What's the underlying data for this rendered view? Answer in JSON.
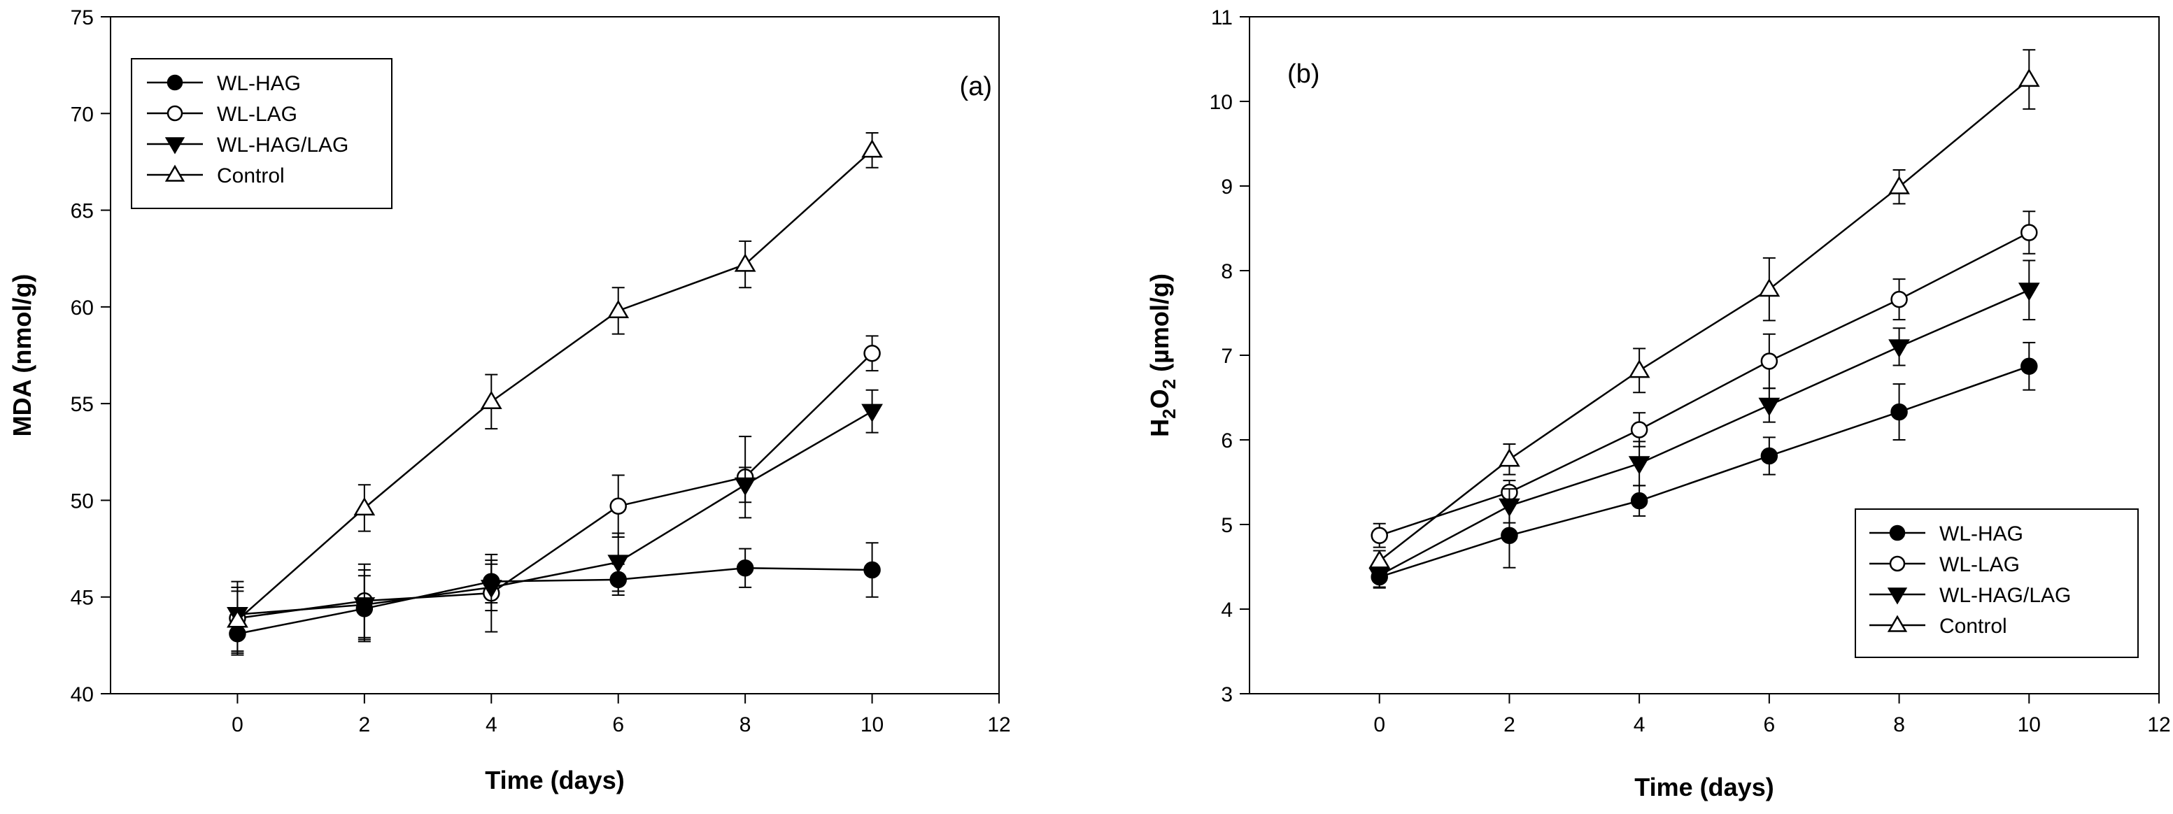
{
  "chart_data": [
    {
      "type": "line",
      "panel_label": "(a)",
      "xlabel": "Time (days)",
      "ylabel": "MDA (nmol/g)",
      "xlim": [
        -2,
        12
      ],
      "ylim": [
        40,
        75
      ],
      "xticks": [
        0,
        2,
        4,
        6,
        8,
        10,
        12
      ],
      "yticks": [
        40,
        45,
        50,
        55,
        60,
        65,
        70,
        75
      ],
      "legend_position": "top-left",
      "x": [
        0,
        2,
        4,
        6,
        8,
        10
      ],
      "series": [
        {
          "name": "WL-HAG",
          "marker": "circle-filled",
          "values": [
            43.1,
            44.4,
            45.8,
            45.9,
            46.5,
            46.4
          ],
          "errors": [
            0.9,
            1.7,
            1.1,
            0.8,
            1.0,
            1.4
          ]
        },
        {
          "name": "WL-LAG",
          "marker": "circle-open",
          "values": [
            43.9,
            44.8,
            45.2,
            49.7,
            51.2,
            57.6
          ],
          "errors": [
            1.9,
            1.9,
            2.0,
            1.6,
            2.1,
            0.9
          ]
        },
        {
          "name": "WL-HAG/LAG",
          "marker": "triangle-down-filled",
          "values": [
            44.1,
            44.6,
            45.5,
            46.8,
            50.8,
            54.6
          ],
          "errors": [
            1.2,
            1.8,
            1.2,
            1.5,
            0.9,
            1.1
          ]
        },
        {
          "name": "Control",
          "marker": "triangle-up-open",
          "values": [
            43.8,
            49.6,
            55.1,
            59.8,
            62.2,
            68.1
          ],
          "errors": [
            1.7,
            1.2,
            1.4,
            1.2,
            1.2,
            0.9
          ]
        }
      ]
    },
    {
      "type": "line",
      "panel_label": "(b)",
      "xlabel": "Time (days)",
      "ylabel": "H2O2 (µmol/g)",
      "ylabel_parts": {
        "pre": "H",
        "sub1": "2",
        "mid": "O",
        "sub2": "2",
        "post": " (µmol/g)"
      },
      "xlim": [
        -2,
        12
      ],
      "ylim": [
        3,
        11
      ],
      "xticks": [
        0,
        2,
        4,
        6,
        8,
        10,
        12
      ],
      "yticks": [
        3,
        4,
        5,
        6,
        7,
        8,
        9,
        10,
        11
      ],
      "legend_position": "bottom-right",
      "x": [
        0,
        2,
        4,
        6,
        8,
        10
      ],
      "series": [
        {
          "name": "WL-HAG",
          "marker": "circle-filled",
          "values": [
            4.38,
            4.87,
            5.28,
            5.81,
            6.33,
            6.87
          ],
          "errors": [
            0.12,
            0.38,
            0.18,
            0.22,
            0.33,
            0.28
          ]
        },
        {
          "name": "WL-LAG",
          "marker": "circle-open",
          "values": [
            4.87,
            5.38,
            6.12,
            6.93,
            7.66,
            8.45
          ],
          "errors": [
            0.14,
            0.14,
            0.2,
            0.32,
            0.24,
            0.25
          ]
        },
        {
          "name": "WL-HAG/LAG",
          "marker": "triangle-down-filled",
          "values": [
            4.4,
            5.22,
            5.72,
            6.41,
            7.1,
            7.77
          ],
          "errors": [
            0.15,
            0.2,
            0.26,
            0.2,
            0.22,
            0.35
          ]
        },
        {
          "name": "Control",
          "marker": "triangle-up-open",
          "values": [
            4.57,
            5.77,
            6.82,
            7.78,
            8.99,
            10.26
          ],
          "errors": [
            0.12,
            0.18,
            0.26,
            0.37,
            0.2,
            0.35
          ]
        }
      ]
    }
  ]
}
